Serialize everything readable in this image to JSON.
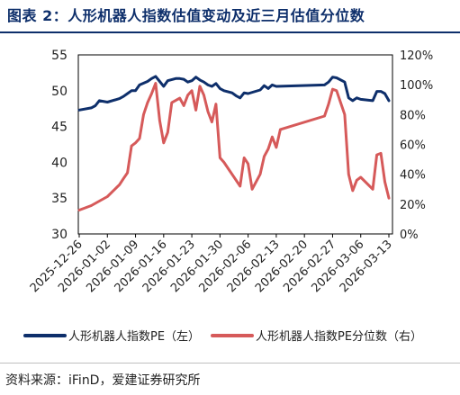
{
  "title": "图表 2：人形机器人指数估值变动及近三月估值分位数",
  "source": "资料来源：iFinD，爱建证券研究所",
  "colors": {
    "title": "#0e2f6b",
    "pe": "#0e2f6b",
    "pct": "#d65a5a"
  },
  "chart_data": {
    "type": "line",
    "x_ticks": [
      "2025-12-26",
      "2026-01-02",
      "2026-01-09",
      "2026-01-16",
      "2026-01-23",
      "2026-01-30",
      "2026-02-06",
      "2026-02-13",
      "2026-02-20",
      "2026-02-27",
      "2026-03-06",
      "2026-03-13"
    ],
    "y_left": {
      "min": 30,
      "max": 55,
      "ticks": [
        "30",
        "35",
        "40",
        "45",
        "50",
        "55"
      ]
    },
    "y_right": {
      "min": 0,
      "max": 120,
      "ticks": [
        "0%",
        "20%",
        "40%",
        "60%",
        "80%",
        "100%",
        "120%"
      ]
    },
    "legend_position": "bottom",
    "series": [
      {
        "name": "人形机器人指数PE（左）",
        "axis": "left",
        "points": [
          [
            "2025-12-26",
            47.3
          ],
          [
            "2025-12-29",
            47.6
          ],
          [
            "2025-12-30",
            47.9
          ],
          [
            "2025-12-31",
            48.6
          ],
          [
            "2026-01-02",
            48.4
          ],
          [
            "2026-01-05",
            48.9
          ],
          [
            "2026-01-06",
            49.2
          ],
          [
            "2026-01-07",
            49.6
          ],
          [
            "2026-01-08",
            50.0
          ],
          [
            "2026-01-09",
            50.0
          ],
          [
            "2026-01-10",
            50.8
          ],
          [
            "2026-01-12",
            51.3
          ],
          [
            "2026-01-13",
            51.7
          ],
          [
            "2026-01-14",
            52.0
          ],
          [
            "2026-01-15",
            51.3
          ],
          [
            "2026-01-16",
            50.6
          ],
          [
            "2026-01-17",
            51.4
          ],
          [
            "2026-01-19",
            51.7
          ],
          [
            "2026-01-20",
            51.7
          ],
          [
            "2026-01-21",
            51.6
          ],
          [
            "2026-01-22",
            51.2
          ],
          [
            "2026-01-23",
            51.4
          ],
          [
            "2026-01-24",
            51.9
          ],
          [
            "2026-01-25",
            51.5
          ],
          [
            "2026-01-26",
            51.2
          ],
          [
            "2026-01-27",
            50.8
          ],
          [
            "2026-01-28",
            50.6
          ],
          [
            "2026-01-29",
            51.0
          ],
          [
            "2026-01-30",
            50.3
          ],
          [
            "2026-01-31",
            50.0
          ],
          [
            "2026-02-02",
            49.7
          ],
          [
            "2026-02-03",
            49.3
          ],
          [
            "2026-02-04",
            49.0
          ],
          [
            "2026-02-05",
            49.7
          ],
          [
            "2026-02-06",
            49.6
          ],
          [
            "2026-02-09",
            50.1
          ],
          [
            "2026-02-10",
            50.7
          ],
          [
            "2026-02-11",
            50.3
          ],
          [
            "2026-02-12",
            50.8
          ],
          [
            "2026-02-13",
            50.6
          ],
          [
            "2026-02-25",
            50.8
          ],
          [
            "2026-02-26",
            51.2
          ],
          [
            "2026-02-27",
            51.9
          ],
          [
            "2026-02-28",
            51.8
          ],
          [
            "2026-03-02",
            51.2
          ],
          [
            "2026-03-03",
            49.0
          ],
          [
            "2026-03-04",
            48.6
          ],
          [
            "2026-03-05",
            49.0
          ],
          [
            "2026-03-06",
            48.8
          ],
          [
            "2026-03-09",
            48.6
          ],
          [
            "2026-03-10",
            49.9
          ],
          [
            "2026-03-11",
            49.9
          ],
          [
            "2026-03-12",
            49.6
          ],
          [
            "2026-03-13",
            48.6
          ]
        ]
      },
      {
        "name": "人形机器人指数PE分位数（右）",
        "axis": "right",
        "points": [
          [
            "2025-12-26",
            16
          ],
          [
            "2025-12-29",
            19
          ],
          [
            "2025-12-31",
            22
          ],
          [
            "2026-01-02",
            25
          ],
          [
            "2026-01-05",
            33
          ],
          [
            "2026-01-06",
            37
          ],
          [
            "2026-01-07",
            41
          ],
          [
            "2026-01-08",
            59
          ],
          [
            "2026-01-09",
            61
          ],
          [
            "2026-01-10",
            64
          ],
          [
            "2026-01-11",
            80
          ],
          [
            "2026-01-12",
            88
          ],
          [
            "2026-01-13",
            94
          ],
          [
            "2026-01-14",
            101
          ],
          [
            "2026-01-15",
            76
          ],
          [
            "2026-01-16",
            61
          ],
          [
            "2026-01-17",
            68
          ],
          [
            "2026-01-18",
            88
          ],
          [
            "2026-01-20",
            91
          ],
          [
            "2026-01-21",
            86
          ],
          [
            "2026-01-22",
            93
          ],
          [
            "2026-01-23",
            96
          ],
          [
            "2026-01-24",
            83
          ],
          [
            "2026-01-25",
            99
          ],
          [
            "2026-01-26",
            93
          ],
          [
            "2026-01-27",
            82
          ],
          [
            "2026-01-28",
            75
          ],
          [
            "2026-01-29",
            87
          ],
          [
            "2026-01-30",
            51
          ],
          [
            "2026-01-31",
            48
          ],
          [
            "2026-02-02",
            40
          ],
          [
            "2026-02-04",
            32
          ],
          [
            "2026-02-05",
            51
          ],
          [
            "2026-02-06",
            47
          ],
          [
            "2026-02-07",
            30
          ],
          [
            "2026-02-09",
            40
          ],
          [
            "2026-02-10",
            52
          ],
          [
            "2026-02-11",
            57
          ],
          [
            "2026-02-12",
            65
          ],
          [
            "2026-02-13",
            58
          ],
          [
            "2026-02-14",
            70
          ],
          [
            "2026-02-25",
            79
          ],
          [
            "2026-02-26",
            87
          ],
          [
            "2026-02-27",
            97
          ],
          [
            "2026-02-28",
            96
          ],
          [
            "2026-03-02",
            80
          ],
          [
            "2026-03-03",
            40
          ],
          [
            "2026-03-04",
            29
          ],
          [
            "2026-03-05",
            36
          ],
          [
            "2026-03-06",
            38
          ],
          [
            "2026-03-09",
            30
          ],
          [
            "2026-03-10",
            53
          ],
          [
            "2026-03-11",
            54
          ],
          [
            "2026-03-12",
            35
          ],
          [
            "2026-03-13",
            24
          ]
        ]
      }
    ]
  }
}
